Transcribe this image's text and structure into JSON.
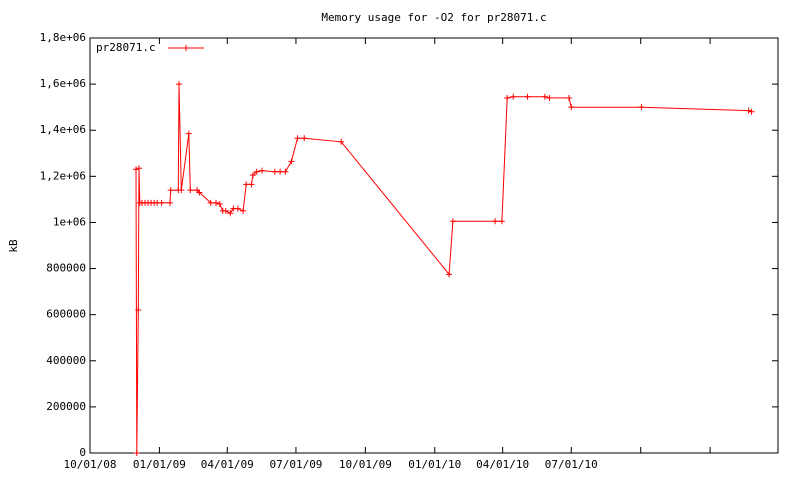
{
  "chart_data": {
    "type": "line",
    "title": "Memory usage for -O2 for pr28071.c",
    "y_label": "kB",
    "x": [
      "2008-12-01",
      "2008-12-02",
      "2008-12-04",
      "2008-12-05",
      "2008-12-06",
      "2008-12-09",
      "2008-12-13",
      "2008-12-17",
      "2008-12-21",
      "2008-12-25",
      "2008-12-29",
      "2009-01-04",
      "2009-01-15",
      "2009-01-16",
      "2009-01-26",
      "2009-01-27",
      "2009-01-30",
      "2009-02-09",
      "2009-02-11",
      "2009-02-20",
      "2009-02-23",
      "2009-03-10",
      "2009-03-17",
      "2009-03-22",
      "2009-03-26",
      "2009-03-30",
      "2009-04-05",
      "2009-04-09",
      "2009-04-15",
      "2009-04-22",
      "2009-04-26",
      "2009-05-03",
      "2009-05-05",
      "2009-05-10",
      "2009-05-17",
      "2009-06-03",
      "2009-06-10",
      "2009-06-17",
      "2009-06-25",
      "2009-07-03",
      "2009-07-12",
      "2009-08-30",
      "2010-01-20",
      "2010-01-25",
      "2010-03-22",
      "2010-03-31",
      "2010-04-07",
      "2010-04-15",
      "2010-05-04",
      "2010-05-27",
      "2010-06-02",
      "2010-06-28",
      "2010-07-01",
      "2010-10-02",
      "2011-02-21",
      "2011-02-25"
    ],
    "series": [
      {
        "name": "pr28071.c",
        "color": "#ff0000",
        "values": [
          1230000,
          0,
          620000,
          1235000,
          1085000,
          1085000,
          1085000,
          1085000,
          1085000,
          1085000,
          1085000,
          1085000,
          1085000,
          1140000,
          1140000,
          1600000,
          1140000,
          1385000,
          1140000,
          1140000,
          1130000,
          1085000,
          1085000,
          1080000,
          1050000,
          1050000,
          1040000,
          1060000,
          1060000,
          1050000,
          1165000,
          1165000,
          1205000,
          1220000,
          1225000,
          1220000,
          1220000,
          1220000,
          1265000,
          1365000,
          1365000,
          1350000,
          775000,
          1005000,
          1005000,
          1005000,
          1540000,
          1545000,
          1545000,
          1545000,
          1540000,
          1540000,
          1500000,
          1500000,
          1485000,
          1480000
        ]
      }
    ],
    "xlim": [
      "2008-10-01",
      "2011-04-01"
    ],
    "xticks": [
      {
        "value": "2008-10-01",
        "label": "10/01/08"
      },
      {
        "value": "2009-01-01",
        "label": "01/01/09"
      },
      {
        "value": "2009-04-01",
        "label": "04/01/09"
      },
      {
        "value": "2009-07-01",
        "label": "07/01/09"
      },
      {
        "value": "2009-10-01",
        "label": "10/01/09"
      },
      {
        "value": "2010-01-01",
        "label": "01/01/10"
      },
      {
        "value": "2010-04-01",
        "label": "04/01/10"
      },
      {
        "value": "2010-07-01",
        "label": "07/01/10"
      },
      {
        "value": "2010-10-01",
        "label": null
      },
      {
        "value": "2011-01-01",
        "label": null
      }
    ],
    "ylim": [
      0,
      1800000
    ],
    "yticks": [
      0,
      200000,
      400000,
      600000,
      800000,
      {
        "value": 1000000,
        "label": "1e+06"
      },
      {
        "value": 1200000,
        "label": "1,2e+06"
      },
      {
        "value": 1400000,
        "label": "1,4e+06"
      },
      {
        "value": 1600000,
        "label": "1,6e+06"
      },
      {
        "value": 1800000,
        "label": "1,8e+06"
      }
    ],
    "legend": "top-left"
  }
}
